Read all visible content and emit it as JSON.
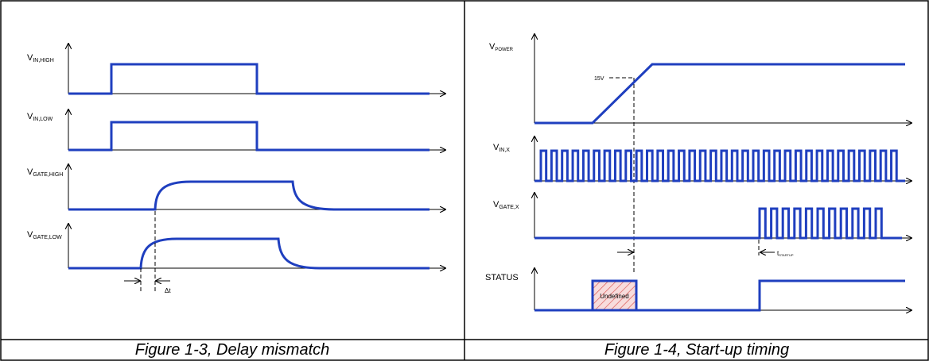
{
  "captions": {
    "left": "Figure 1-3, Delay mismatch",
    "right": "Figure 1-4, Start-up timing"
  },
  "left_figure": {
    "signals": {
      "vin_high": {
        "main": "V",
        "sub": "IN,HIGH"
      },
      "vin_low": {
        "main": "V",
        "sub": "IN,LOW"
      },
      "vgate_high": {
        "main": "V",
        "sub": "GATE,HIGH"
      },
      "vgate_low": {
        "main": "V",
        "sub": "GATE,LOW"
      }
    },
    "delta_label": "Δt"
  },
  "right_figure": {
    "signals": {
      "vpower": {
        "main": "V",
        "sub": "POWER"
      },
      "vin_x": {
        "main": "V",
        "sub": "IN,X"
      },
      "vgate_x": {
        "main": "V",
        "sub": "GATE,X"
      },
      "status": {
        "main": "STATUS",
        "sub": ""
      }
    },
    "threshold_label": "15V",
    "startup_label": {
      "main": "t",
      "sub": "STARTUP"
    },
    "undefined_label": "Undefined"
  },
  "colors": {
    "waveform": "#1f3fbf",
    "axis": "#000000",
    "hatch": "#d9534f",
    "hatch_fill": "#f8dcdc"
  }
}
